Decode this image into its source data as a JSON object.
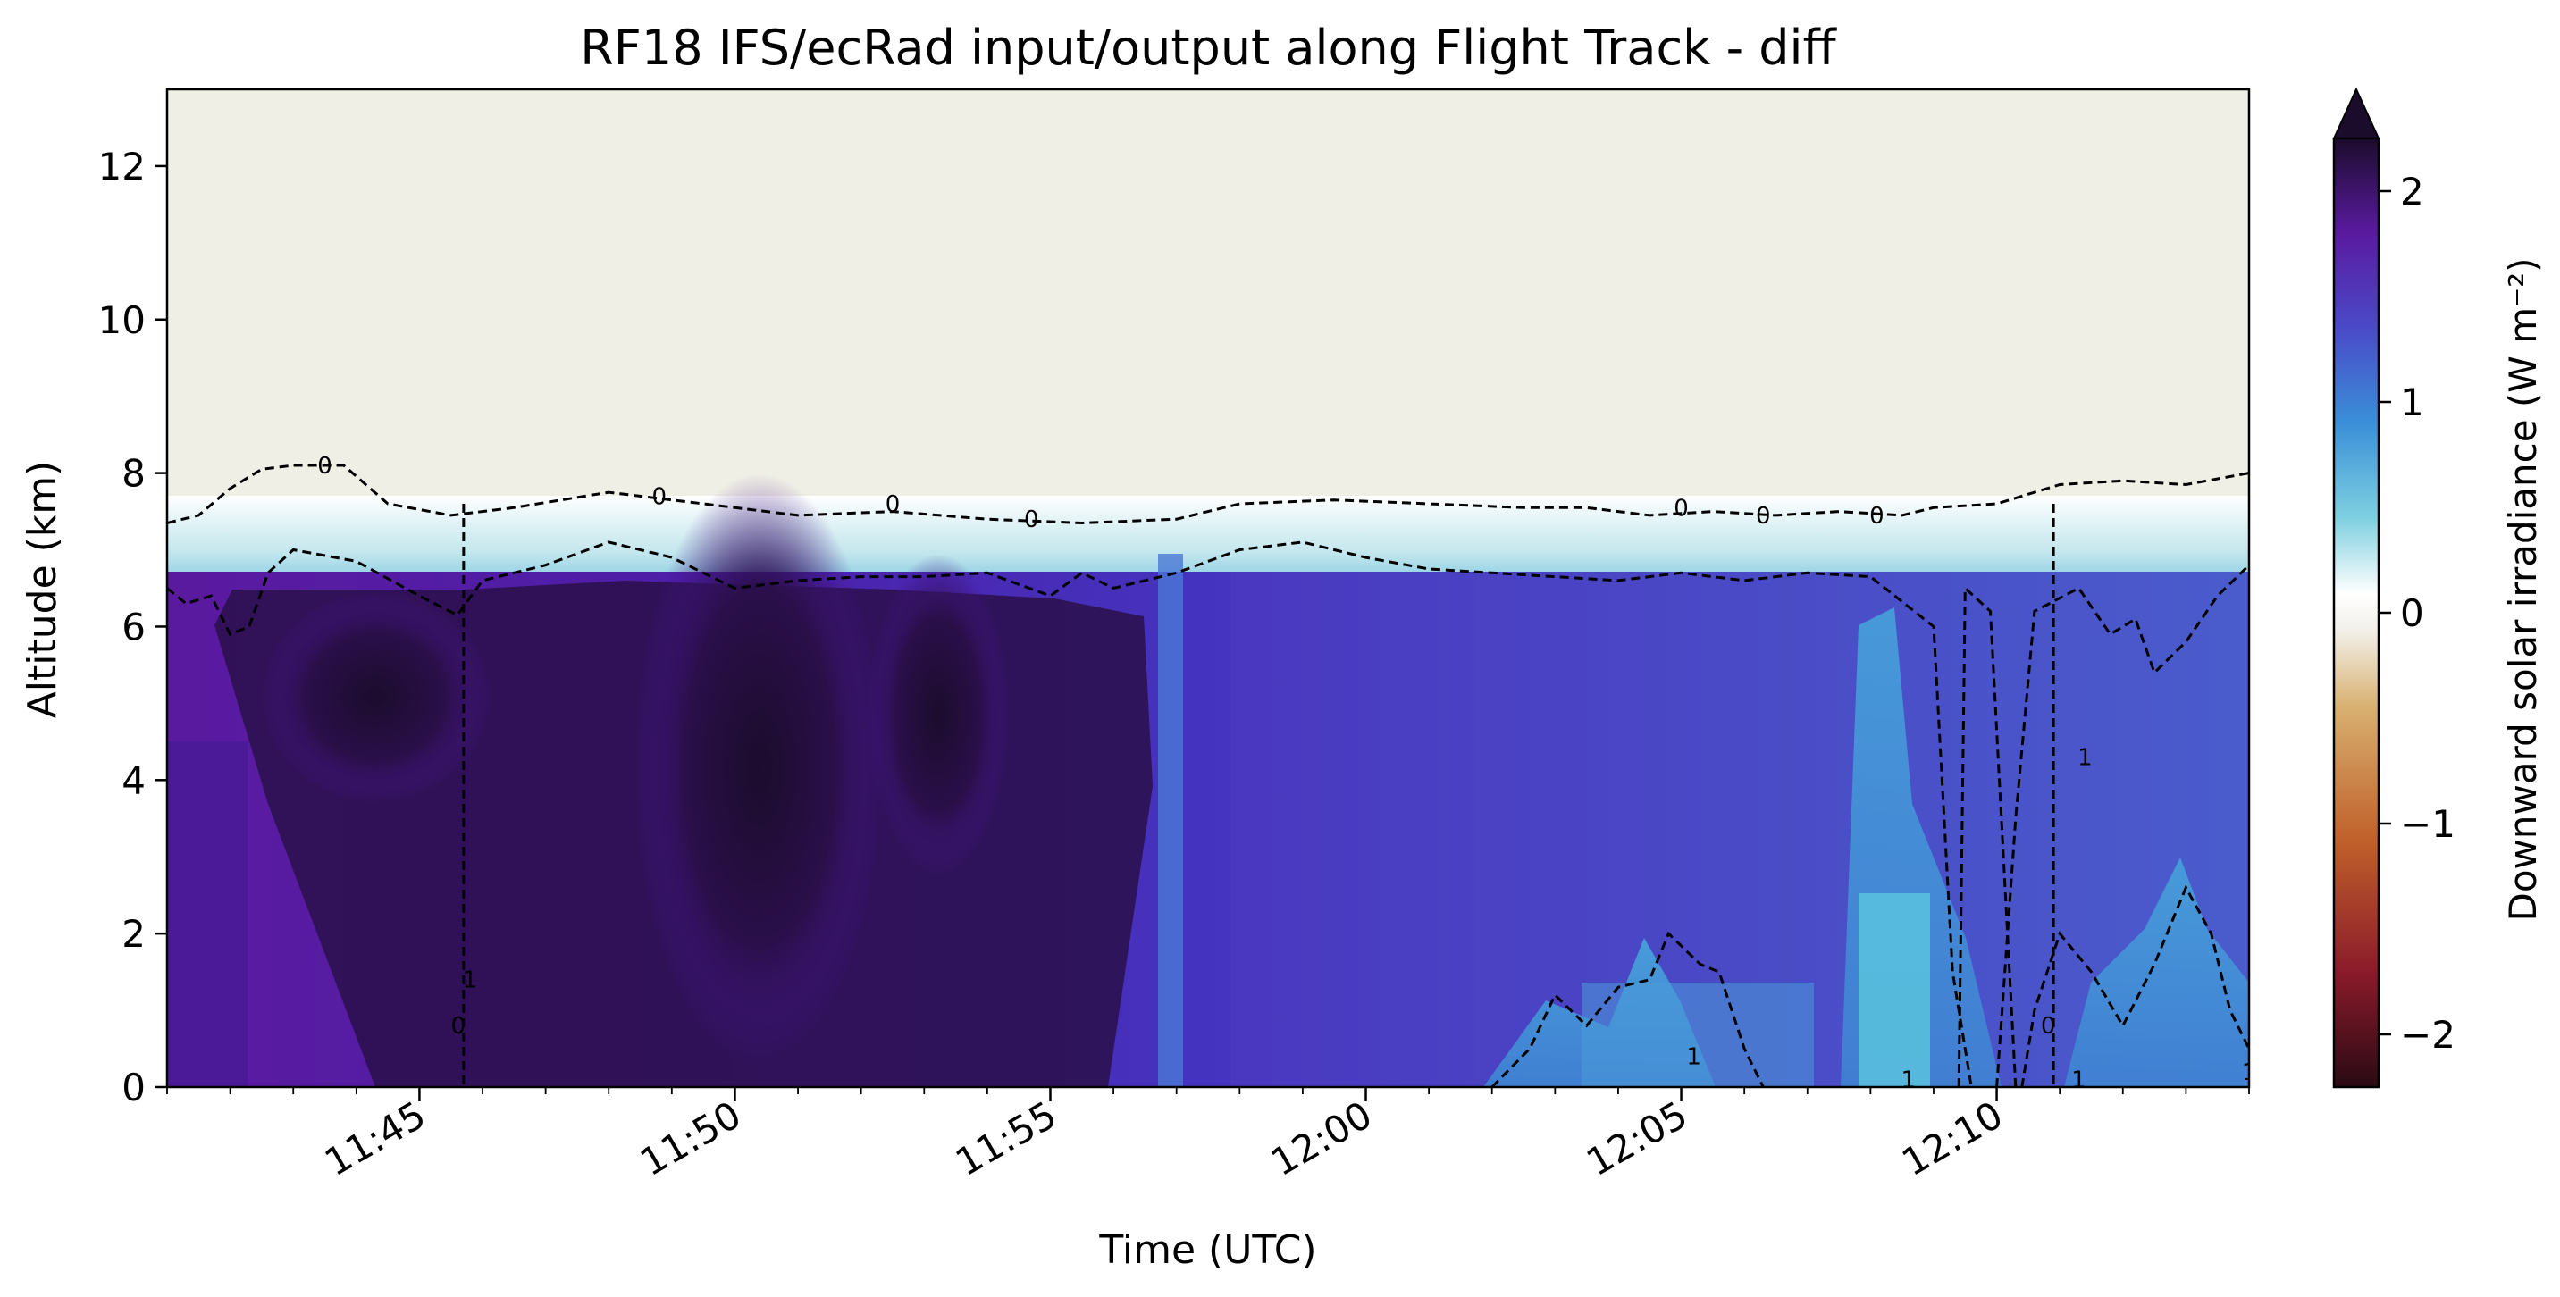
{
  "chart_data": {
    "type": "heatmap",
    "title": "RF18 IFS/ecRad input/output along Flight Track - diff",
    "xlabel": "Time (UTC)",
    "ylabel": "Altitude (km)",
    "x_range": [
      "11:41",
      "12:14"
    ],
    "xticks": [
      "11:45",
      "11:50",
      "11:55",
      "12:00",
      "12:05",
      "12:10"
    ],
    "ylim": [
      0,
      13
    ],
    "yticks": [
      "0",
      "2",
      "4",
      "6",
      "8",
      "10",
      "12"
    ],
    "colorbar": {
      "label": "Downward solar irradiance (W m⁻²)",
      "range": [
        -2.25,
        2.25
      ],
      "extend": "max",
      "ticks": [
        "−2",
        "−1",
        "0",
        "1",
        "2"
      ],
      "colors": [
        "#2a0a14",
        "#8a1a2a",
        "#c0602a",
        "#d8b070",
        "#f2efe8",
        "#ffffff",
        "#7ed0e0",
        "#3a8fd8",
        "#4a4ac8",
        "#5a1aa0",
        "#1c0c2c"
      ]
    },
    "field_description_levels": {
      "upper_clear_value": 0,
      "dark_core_value": 2.2,
      "mid_value": 1.8,
      "right_mid_value": 1.3
    },
    "contour_levels": [
      "0",
      "1"
    ],
    "contours": [
      {
        "level": "0",
        "points": [
          [
            0,
            7.35
          ],
          [
            0.5,
            7.45
          ],
          [
            1,
            7.8
          ],
          [
            1.5,
            8.05
          ],
          [
            2,
            8.1
          ],
          [
            2.8,
            8.1
          ],
          [
            3.5,
            7.6
          ],
          [
            4.5,
            7.45
          ],
          [
            5.5,
            7.55
          ],
          [
            7,
            7.75
          ],
          [
            8.5,
            7.6
          ],
          [
            10,
            7.45
          ],
          [
            11.5,
            7.5
          ],
          [
            13,
            7.4
          ],
          [
            14.5,
            7.35
          ],
          [
            16,
            7.4
          ],
          [
            17,
            7.6
          ],
          [
            18.5,
            7.65
          ],
          [
            20,
            7.6
          ],
          [
            21.5,
            7.55
          ],
          [
            22.5,
            7.55
          ],
          [
            23.5,
            7.45
          ],
          [
            24.5,
            7.5
          ],
          [
            25.5,
            7.45
          ],
          [
            26.5,
            7.5
          ],
          [
            27.5,
            7.45
          ],
          [
            28,
            7.55
          ],
          [
            29,
            7.6
          ],
          [
            30,
            7.85
          ],
          [
            31,
            7.9
          ],
          [
            32,
            7.85
          ],
          [
            33,
            8.0
          ]
        ],
        "labels": [
          [
            2.5,
            8.1
          ],
          [
            7.8,
            7.7
          ],
          [
            11.5,
            7.6
          ],
          [
            13.7,
            7.4
          ],
          [
            24,
            7.55
          ],
          [
            25.3,
            7.45
          ],
          [
            27.1,
            7.45
          ]
        ]
      },
      {
        "level": "1",
        "points": [
          [
            0,
            6.5
          ],
          [
            0.3,
            6.3
          ],
          [
            0.7,
            6.4
          ],
          [
            1,
            5.9
          ],
          [
            1.3,
            6.0
          ],
          [
            1.6,
            6.7
          ],
          [
            2,
            7.0
          ],
          [
            3,
            6.85
          ],
          [
            4,
            6.4
          ],
          [
            4.6,
            6.15
          ],
          [
            5,
            6.6
          ],
          [
            6,
            6.8
          ],
          [
            7,
            7.1
          ],
          [
            8,
            6.9
          ],
          [
            9,
            6.5
          ],
          [
            10,
            6.6
          ],
          [
            11,
            6.65
          ],
          [
            12,
            6.65
          ],
          [
            13,
            6.7
          ],
          [
            14,
            6.4
          ],
          [
            14.5,
            6.7
          ],
          [
            15,
            6.5
          ],
          [
            16,
            6.7
          ],
          [
            17,
            7.0
          ],
          [
            18,
            7.1
          ],
          [
            19,
            6.9
          ],
          [
            20,
            6.75
          ],
          [
            21,
            6.7
          ],
          [
            22,
            6.65
          ],
          [
            23,
            6.6
          ],
          [
            24,
            6.7
          ],
          [
            25,
            6.6
          ],
          [
            26,
            6.7
          ],
          [
            27,
            6.65
          ],
          [
            28,
            6.0
          ],
          [
            28.3,
            1.5
          ],
          [
            28.6,
            0.0
          ]
        ],
        "labels": [
          [
            4.8,
            1.4
          ],
          [
            27.6,
            0.1
          ]
        ]
      },
      {
        "level": "1",
        "points": [
          [
            21,
            0.0
          ],
          [
            21.6,
            0.5
          ],
          [
            22,
            1.2
          ],
          [
            22.5,
            0.8
          ],
          [
            23,
            1.3
          ],
          [
            23.5,
            1.4
          ],
          [
            23.8,
            2.0
          ],
          [
            24.3,
            1.6
          ],
          [
            24.6,
            1.5
          ],
          [
            25.0,
            0.5
          ],
          [
            25.3,
            0.0
          ]
        ],
        "labels": [
          [
            24.2,
            0.4
          ]
        ]
      },
      {
        "level": "1",
        "points": [
          [
            29.0,
            0.0
          ],
          [
            29.3,
            3.5
          ],
          [
            29.6,
            6.2
          ],
          [
            30.3,
            6.5
          ],
          [
            30.8,
            5.9
          ],
          [
            31.2,
            6.1
          ],
          [
            31.5,
            5.4
          ],
          [
            32,
            5.8
          ],
          [
            32.5,
            6.4
          ],
          [
            33,
            6.8
          ]
        ],
        "labels": [
          [
            30.4,
            4.3
          ]
        ]
      },
      {
        "level": "1",
        "points": [
          [
            28.4,
            0.0
          ],
          [
            28.5,
            6.5
          ],
          [
            28.9,
            6.2
          ],
          [
            29.3,
            0.0
          ]
        ],
        "labels": []
      },
      {
        "level": "1",
        "points": [
          [
            29.4,
            0.0
          ],
          [
            29.6,
            1.0
          ],
          [
            30.0,
            2.0
          ],
          [
            30.5,
            1.5
          ],
          [
            31.0,
            0.8
          ],
          [
            31.5,
            1.6
          ],
          [
            32.0,
            2.6
          ],
          [
            32.4,
            2.0
          ],
          [
            32.7,
            1.0
          ],
          [
            33,
            0.5
          ]
        ],
        "labels": [
          [
            30.3,
            0.1
          ],
          [
            33.0,
            0.2
          ]
        ]
      }
    ],
    "vertical_marks": [
      {
        "x": 4.7,
        "label": "0"
      },
      {
        "x": 29.9,
        "label": "0"
      }
    ]
  }
}
